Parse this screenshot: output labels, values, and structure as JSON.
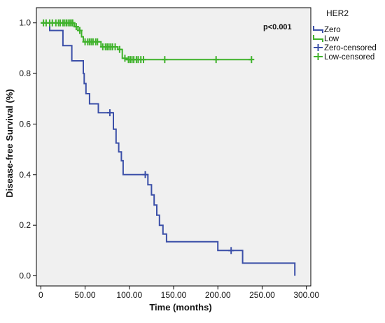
{
  "chart_data": {
    "type": "line",
    "step": true,
    "xlabel": "Time (months)",
    "ylabel": "Disease-free Survival (%)",
    "xlim": [
      -5,
      305
    ],
    "ylim": [
      -0.04,
      1.06
    ],
    "x_ticks": [
      0,
      50,
      100,
      150,
      200,
      250,
      300
    ],
    "x_tick_labels": [
      "0",
      "50.00",
      "100.00",
      "150.00",
      "200.00",
      "250.00",
      "300.00"
    ],
    "y_ticks": [
      0,
      0.2,
      0.4,
      0.6,
      0.8,
      1.0
    ],
    "y_tick_labels": [
      "0.0",
      "0.2",
      "0.4",
      "0.6",
      "0.8",
      "1.0"
    ],
    "grid": false,
    "background": "#f0f0f0",
    "legend": {
      "title": "HER2",
      "placement": "right-outside",
      "entries": [
        "Zero",
        "Low",
        "Zero-censored",
        "Low-censored"
      ]
    },
    "annotations": [
      {
        "text": "p<0.001",
        "x": 278,
        "y": 0.98
      }
    ],
    "series": [
      {
        "name": "Zero",
        "color": "#3b4fa8",
        "points": [
          [
            0,
            1.0
          ],
          [
            10,
            1.0
          ],
          [
            10,
            0.97
          ],
          [
            25,
            0.97
          ],
          [
            25,
            0.91
          ],
          [
            35,
            0.91
          ],
          [
            35,
            0.85
          ],
          [
            48,
            0.85
          ],
          [
            48,
            0.8
          ],
          [
            49,
            0.8
          ],
          [
            49,
            0.76
          ],
          [
            51,
            0.76
          ],
          [
            51,
            0.72
          ],
          [
            55,
            0.72
          ],
          [
            55,
            0.68
          ],
          [
            65,
            0.68
          ],
          [
            65,
            0.645
          ],
          [
            82,
            0.645
          ],
          [
            82,
            0.58
          ],
          [
            85,
            0.58
          ],
          [
            85,
            0.525
          ],
          [
            88,
            0.525
          ],
          [
            88,
            0.49
          ],
          [
            91,
            0.49
          ],
          [
            91,
            0.455
          ],
          [
            93,
            0.455
          ],
          [
            93,
            0.4
          ],
          [
            121,
            0.4
          ],
          [
            121,
            0.36
          ],
          [
            125,
            0.36
          ],
          [
            125,
            0.32
          ],
          [
            128,
            0.32
          ],
          [
            128,
            0.28
          ],
          [
            131,
            0.28
          ],
          [
            131,
            0.24
          ],
          [
            134,
            0.24
          ],
          [
            134,
            0.2
          ],
          [
            138,
            0.2
          ],
          [
            138,
            0.165
          ],
          [
            142,
            0.165
          ],
          [
            142,
            0.135
          ],
          [
            165,
            0.135
          ],
          [
            165,
            0.135
          ],
          [
            200,
            0.135
          ],
          [
            200,
            0.1
          ],
          [
            228,
            0.1
          ],
          [
            228,
            0.05
          ],
          [
            287,
            0.05
          ],
          [
            287,
            0.0
          ]
        ],
        "censored": [
          [
            78,
            0.645
          ],
          [
            118,
            0.4
          ],
          [
            215,
            0.1
          ]
        ]
      },
      {
        "name": "Low",
        "color": "#3fb22b",
        "points": [
          [
            0,
            1.0
          ],
          [
            38,
            1.0
          ],
          [
            38,
            0.985
          ],
          [
            42,
            0.985
          ],
          [
            42,
            0.97
          ],
          [
            46,
            0.97
          ],
          [
            46,
            0.945
          ],
          [
            48,
            0.945
          ],
          [
            48,
            0.925
          ],
          [
            68,
            0.925
          ],
          [
            68,
            0.905
          ],
          [
            87,
            0.905
          ],
          [
            87,
            0.895
          ],
          [
            92,
            0.895
          ],
          [
            92,
            0.86
          ],
          [
            97,
            0.86
          ],
          [
            97,
            0.855
          ],
          [
            238,
            0.855
          ]
        ],
        "censored": [
          [
            3,
            1.0
          ],
          [
            6,
            1.0
          ],
          [
            10,
            1.0
          ],
          [
            13,
            1.0
          ],
          [
            17,
            1.0
          ],
          [
            20,
            1.0
          ],
          [
            22,
            1.0
          ],
          [
            25,
            1.0
          ],
          [
            27,
            1.0
          ],
          [
            29,
            1.0
          ],
          [
            31,
            1.0
          ],
          [
            33,
            1.0
          ],
          [
            35,
            1.0
          ],
          [
            36,
            1.0
          ],
          [
            40,
            0.985
          ],
          [
            44,
            0.97
          ],
          [
            50,
            0.925
          ],
          [
            53,
            0.925
          ],
          [
            55,
            0.925
          ],
          [
            57,
            0.925
          ],
          [
            59,
            0.925
          ],
          [
            62,
            0.925
          ],
          [
            64,
            0.925
          ],
          [
            70,
            0.905
          ],
          [
            73,
            0.905
          ],
          [
            75,
            0.905
          ],
          [
            77,
            0.905
          ],
          [
            79,
            0.905
          ],
          [
            81,
            0.905
          ],
          [
            84,
            0.905
          ],
          [
            89,
            0.895
          ],
          [
            95,
            0.86
          ],
          [
            99,
            0.855
          ],
          [
            101,
            0.855
          ],
          [
            103,
            0.855
          ],
          [
            105,
            0.855
          ],
          [
            108,
            0.855
          ],
          [
            110,
            0.855
          ],
          [
            113,
            0.855
          ],
          [
            116,
            0.855
          ],
          [
            140,
            0.855
          ],
          [
            198,
            0.855
          ],
          [
            238,
            0.855
          ]
        ]
      }
    ]
  }
}
